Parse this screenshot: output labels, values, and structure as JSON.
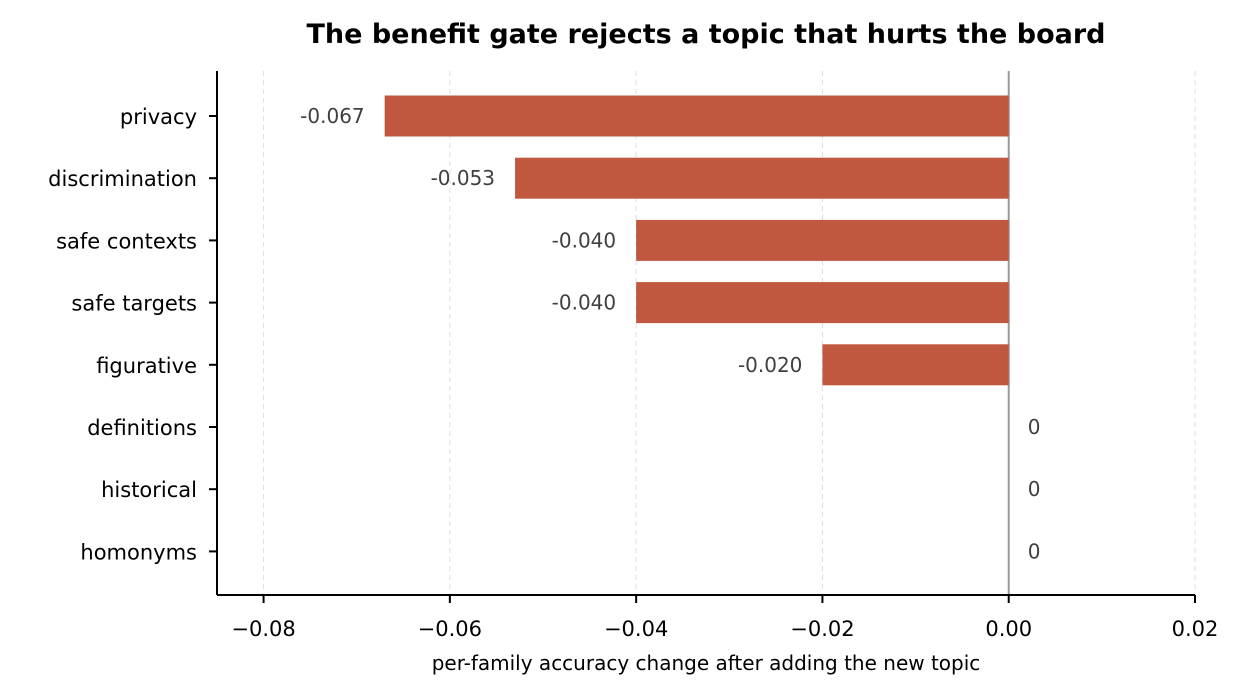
{
  "chart_data": {
    "type": "bar",
    "orientation": "horizontal",
    "title": "The benefit gate rejects a topic that hurts the board",
    "xlabel": "per-family accuracy change after adding the new topic",
    "ylabel": "",
    "categories": [
      "privacy",
      "discrimination",
      "safe contexts",
      "safe targets",
      "figurative",
      "definitions",
      "historical",
      "homonyms"
    ],
    "values": [
      -0.067,
      -0.053,
      -0.04,
      -0.04,
      -0.02,
      0,
      0,
      0
    ],
    "data_labels": [
      "-0.067",
      "-0.053",
      "-0.040",
      "-0.040",
      "-0.020",
      "0",
      "0",
      "0"
    ],
    "xlim": [
      -0.085,
      0.02
    ],
    "xticks": [
      -0.08,
      -0.06,
      -0.04,
      -0.02,
      0.0,
      0.02
    ],
    "xtick_labels": [
      "−0.08",
      "−0.06",
      "−0.04",
      "−0.02",
      "0.00",
      "0.02"
    ],
    "grid": "vertical dashed",
    "reference_line": 0,
    "legend": "none",
    "colors": {
      "bar": "#c0573f",
      "grid": "#dddddd",
      "zero_line": "#999999",
      "axis": "#000000",
      "data_label": "#404040"
    }
  }
}
